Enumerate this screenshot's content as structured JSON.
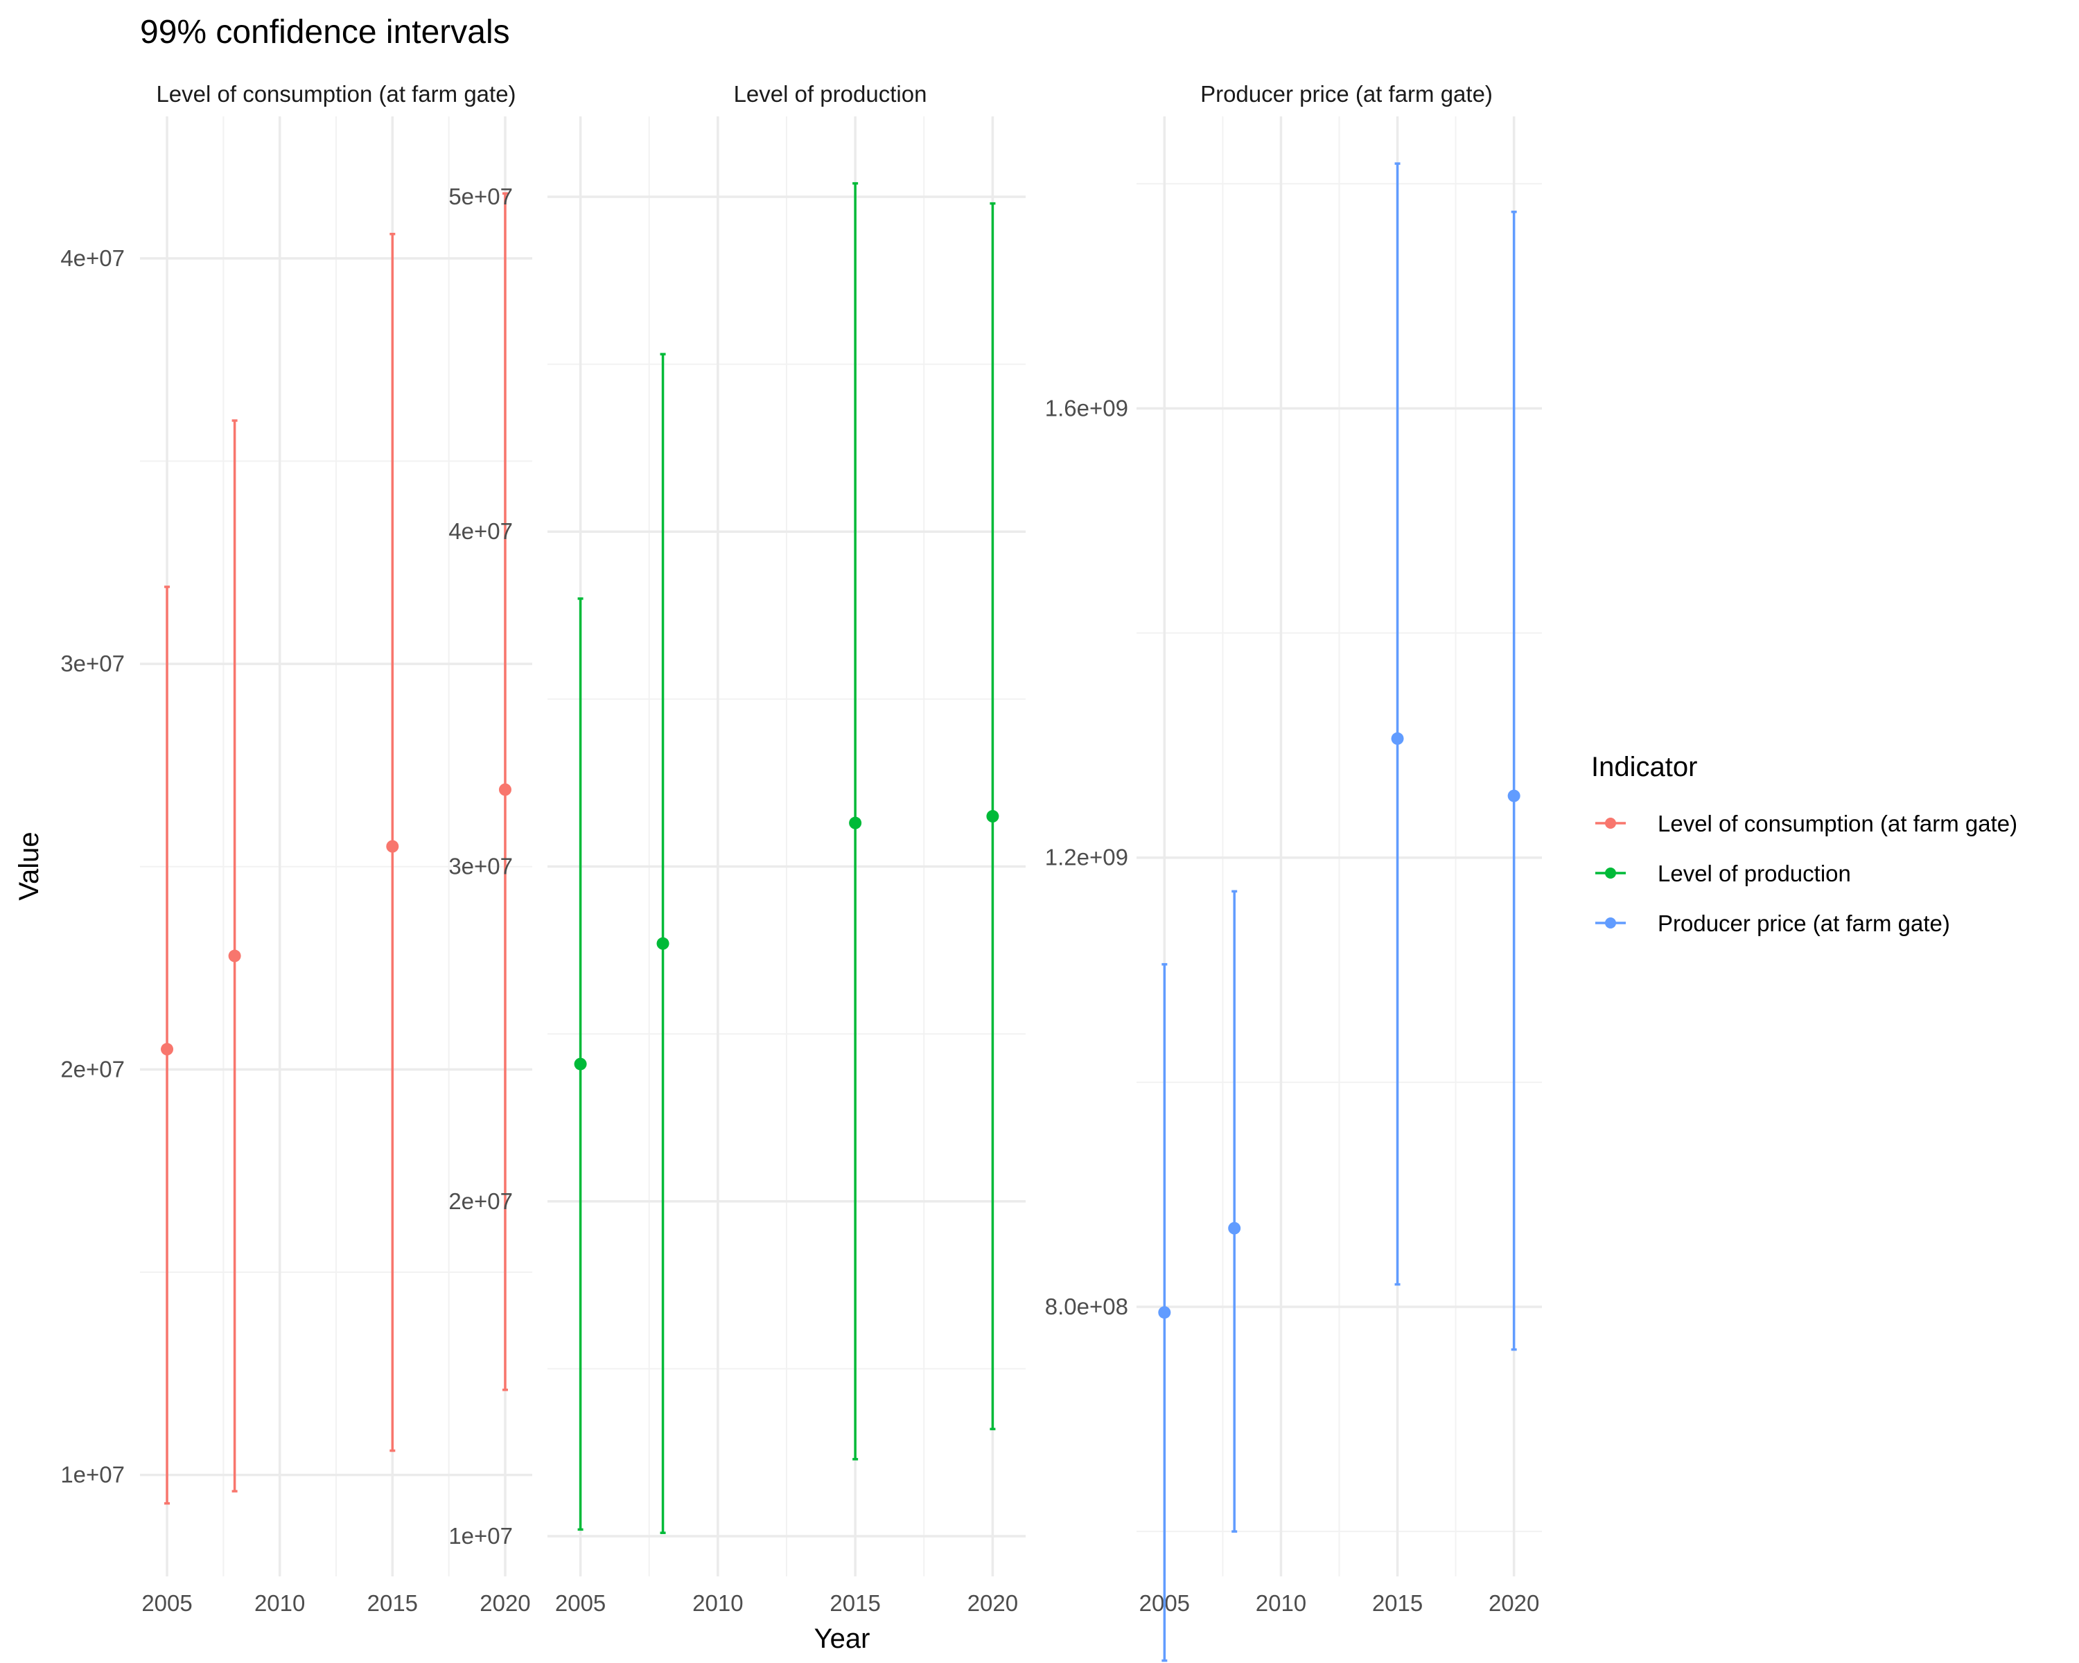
{
  "chart_data": {
    "type": "errorbar",
    "title": "99% confidence intervals",
    "xlabel": "Year",
    "ylabel": "Value",
    "legend": {
      "title": "Indicator",
      "position": "right"
    },
    "x_ticks": [
      2005,
      2010,
      2015,
      2020
    ],
    "panels": [
      {
        "strip": "Level of consumption (at farm gate)",
        "color": "#F8766D",
        "ylim": [
          7500000,
          43500000
        ],
        "y_ticks": [
          10000000,
          20000000,
          30000000,
          40000000
        ],
        "y_tick_labels": [
          "1e+07",
          "2e+07",
          "3e+07",
          "4e+07"
        ],
        "x": [
          2005,
          2008,
          2015,
          2020
        ],
        "y": [
          20500000,
          22800000,
          25500000,
          26900000
        ],
        "lower": [
          9300000,
          9600000,
          10600000,
          12100000
        ],
        "upper": [
          31900000,
          36000000,
          40600000,
          41600000
        ]
      },
      {
        "strip": "Level of production",
        "color": "#00BA38",
        "ylim": [
          8800000,
          52400000
        ],
        "y_ticks": [
          10000000,
          20000000,
          30000000,
          40000000,
          50000000
        ],
        "y_tick_labels": [
          "1e+07",
          "2e+07",
          "3e+07",
          "4e+07",
          "5e+07"
        ],
        "x": [
          2005,
          2008,
          2015,
          2020
        ],
        "y": [
          24100000,
          27700000,
          31300000,
          31500000
        ],
        "lower": [
          10200000,
          10100000,
          12300000,
          13200000
        ],
        "upper": [
          38000000,
          45300000,
          50400000,
          49800000
        ]
      },
      {
        "strip": "Producer price (at farm gate)",
        "color": "#619CFF",
        "ylim": [
          560000000,
          1860000000
        ],
        "y_ticks": [
          800000000,
          1200000000,
          1600000000
        ],
        "y_tick_labels": [
          "8.0e+08",
          "1.2e+09",
          "1.6e+09"
        ],
        "x": [
          2005,
          2008,
          2015,
          2020
        ],
        "y": [
          795000000,
          870000000,
          1306000000,
          1255000000
        ],
        "lower": [
          485000000,
          600000000,
          820000000,
          762000000
        ],
        "upper": [
          1105000000,
          1170000000,
          1818000000,
          1775000000
        ]
      }
    ],
    "legend_entries": [
      {
        "label": "Level of consumption (at farm gate)",
        "color": "#F8766D"
      },
      {
        "label": "Level of production",
        "color": "#00BA38"
      },
      {
        "label": "Producer price (at farm gate)",
        "color": "#619CFF"
      }
    ]
  }
}
